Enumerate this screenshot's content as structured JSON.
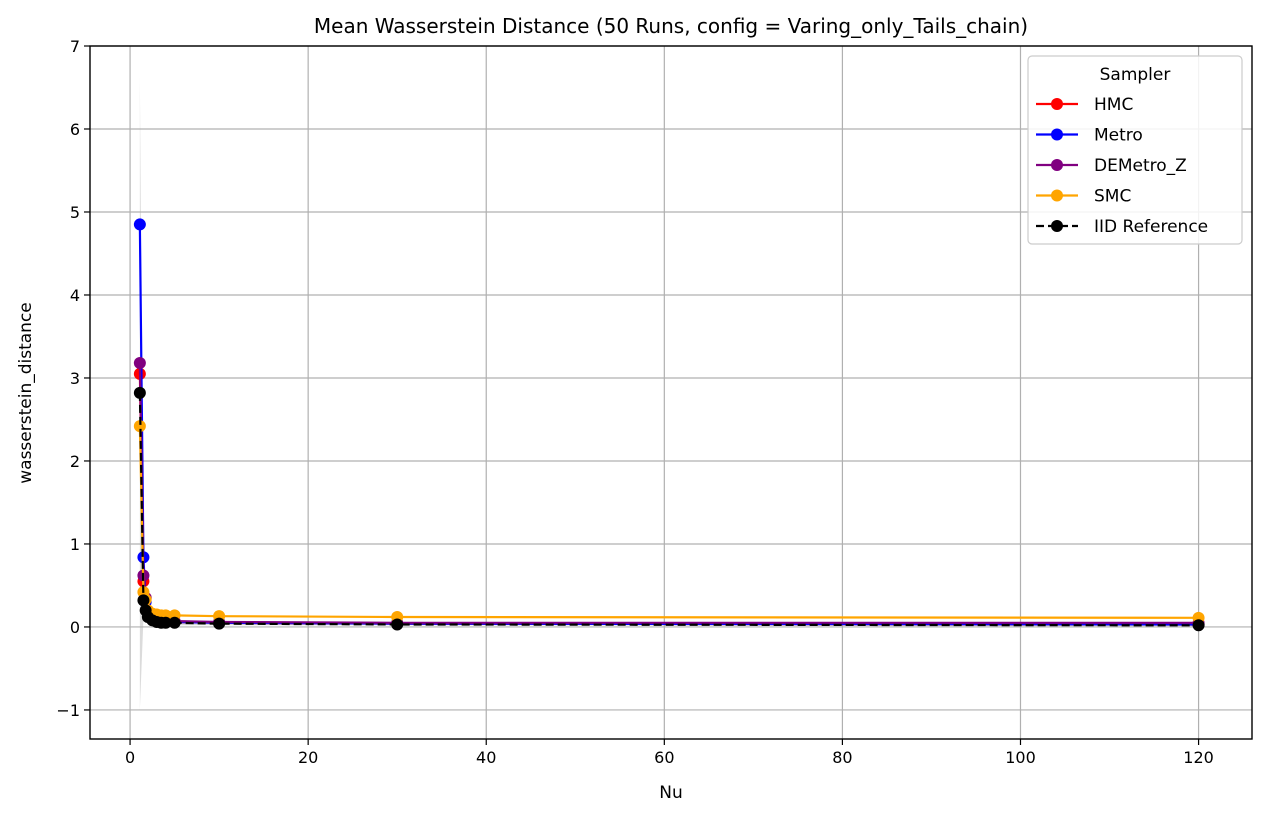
{
  "chart_data": {
    "type": "line",
    "title": "Mean Wasserstein Distance (50 Runs, config = Varing_only_Tails_chain)",
    "xlabel": "Nu",
    "ylabel": "wasserstein_distance",
    "xlim": [
      -4.5,
      126
    ],
    "ylim": [
      -1.35,
      7
    ],
    "xticks": [
      0,
      20,
      40,
      60,
      80,
      100,
      120
    ],
    "yticks": [
      -1,
      0,
      1,
      2,
      3,
      4,
      5,
      6,
      7
    ],
    "xtick_labels": [
      "0",
      "20",
      "40",
      "60",
      "80",
      "100",
      "120"
    ],
    "ytick_labels": [
      "−1",
      "0",
      "1",
      "2",
      "3",
      "4",
      "5",
      "6",
      "7"
    ],
    "grid": true,
    "legend": {
      "title": "Sampler",
      "placement": "top-right"
    },
    "x": [
      1.1,
      1.5,
      1.75,
      2,
      2.5,
      3,
      3.5,
      4,
      5,
      10,
      30,
      120
    ],
    "band": {
      "color": "#b0b0b0",
      "x": [
        1.1,
        1.5,
        1.75,
        2,
        2.5,
        3,
        3.5,
        4,
        5,
        10,
        30,
        120
      ],
      "lower": [
        -1.0,
        0.1,
        0.12,
        0.08,
        0.04,
        0.03,
        0.02,
        0.02,
        0.02,
        0.02,
        0.02,
        0.01
      ],
      "upper": [
        6.62,
        0.55,
        0.5,
        0.3,
        0.16,
        0.12,
        0.1,
        0.1,
        0.09,
        0.06,
        0.05,
        0.04
      ]
    },
    "series": [
      {
        "name": "HMC",
        "color": "#ff0000",
        "dashed": false,
        "values": [
          3.05,
          0.55,
          0.35,
          0.18,
          0.1,
          0.08,
          0.07,
          0.07,
          0.06,
          0.05,
          0.04,
          0.03
        ]
      },
      {
        "name": "Metro",
        "color": "#0000ff",
        "dashed": false,
        "values": [
          4.85,
          0.84,
          0.3,
          0.17,
          0.1,
          0.08,
          0.07,
          0.07,
          0.06,
          0.05,
          0.04,
          0.03
        ]
      },
      {
        "name": "DEMetro_Z",
        "color": "#800080",
        "dashed": false,
        "values": [
          3.18,
          0.62,
          0.35,
          0.17,
          0.1,
          0.08,
          0.07,
          0.07,
          0.07,
          0.06,
          0.05,
          0.05
        ]
      },
      {
        "name": "SMC",
        "color": "#ffa500",
        "dashed": false,
        "values": [
          2.42,
          0.42,
          0.33,
          0.2,
          0.16,
          0.15,
          0.14,
          0.14,
          0.14,
          0.13,
          0.12,
          0.11
        ]
      },
      {
        "name": "IID Reference",
        "color": "#000000",
        "dashed": true,
        "values": [
          2.82,
          0.32,
          0.2,
          0.12,
          0.08,
          0.06,
          0.05,
          0.05,
          0.05,
          0.04,
          0.03,
          0.02
        ]
      }
    ]
  }
}
